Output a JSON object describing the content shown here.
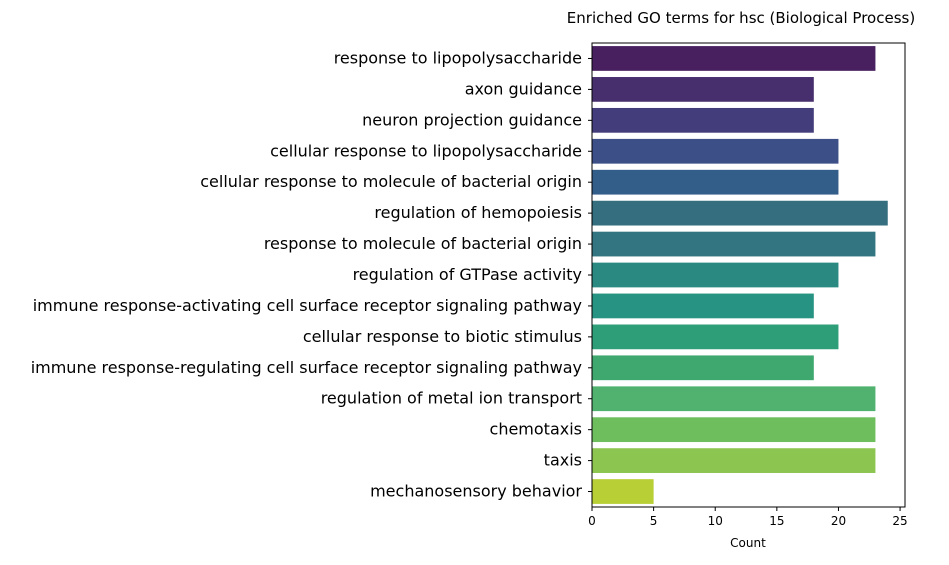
{
  "chart_data": {
    "type": "bar",
    "orientation": "horizontal",
    "title": "Enriched GO terms for hsc (Biological Process)",
    "xlabel": "Count",
    "ylabel": "",
    "xlim": [
      0,
      25
    ],
    "xticks": [
      0,
      5,
      10,
      15,
      20,
      25
    ],
    "grid": false,
    "categories": [
      "response to lipopolysaccharide",
      "axon guidance",
      "neuron projection guidance",
      "cellular response to lipopolysaccharide",
      "cellular response to molecule of bacterial origin",
      "regulation of hemopoiesis",
      "response to molecule of bacterial origin",
      "regulation of GTPase activity",
      "immune response-activating cell surface receptor signaling pathway",
      "cellular response to biotic stimulus",
      "immune response-regulating cell surface receptor signaling pathway",
      "regulation of metal ion transport",
      "chemotaxis",
      "taxis",
      "mechanosensory behavior"
    ],
    "values": [
      23,
      18,
      18,
      20,
      20,
      24,
      23,
      20,
      18,
      20,
      18,
      23,
      23,
      23,
      5
    ],
    "colors": [
      "#481f5f",
      "#472f6e",
      "#433e7b",
      "#3c4f87",
      "#345e8a",
      "#356e7f",
      "#337581",
      "#2a8a82",
      "#279382",
      "#2e9e78",
      "#3ea86e",
      "#51b270",
      "#6ebe5e",
      "#8cc54f",
      "#b8cf35"
    ]
  }
}
